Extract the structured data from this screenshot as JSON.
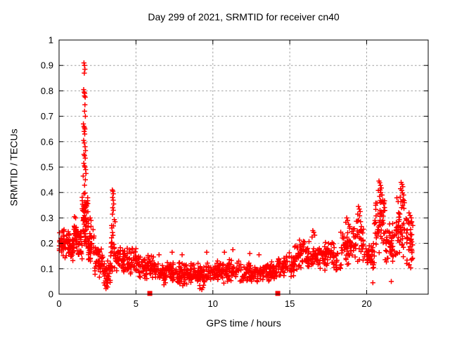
{
  "chart_data": {
    "type": "scatter",
    "title": "Day 299 of 2021, SRMTID for receiver cn40",
    "xlabel": "GPS time / hours",
    "ylabel": "SRMTID / TECUs",
    "xlim": [
      0,
      24
    ],
    "ylim": [
      0,
      1
    ],
    "xticks": [
      0,
      5,
      10,
      15,
      20
    ],
    "yticks": [
      0,
      0.1,
      0.2,
      0.3,
      0.4,
      0.5,
      0.6,
      0.7,
      0.8,
      0.9,
      1
    ],
    "grid": true,
    "legend": "none",
    "colors": {
      "points": "#ff0000",
      "axis": "#000000",
      "grid": "#a0a0a0",
      "background": "#ffffff",
      "text": "#000000"
    },
    "seed": 299,
    "series": [
      {
        "name": "SRMTID",
        "marker": "plus",
        "cluster_bins": [
          [
            0.0,
            0.35,
            0.14,
            0.27,
            32
          ],
          [
            0.35,
            0.95,
            0.13,
            0.26,
            55
          ],
          [
            0.95,
            1.25,
            0.15,
            0.3,
            34
          ],
          [
            1.25,
            1.5,
            0.13,
            0.26,
            24
          ],
          [
            1.5,
            1.9,
            0.16,
            0.46,
            60
          ],
          [
            1.9,
            2.3,
            0.1,
            0.28,
            40
          ],
          [
            2.3,
            2.85,
            0.06,
            0.2,
            42
          ],
          [
            2.85,
            3.35,
            0.025,
            0.14,
            40
          ],
          [
            3.35,
            3.65,
            0.06,
            0.3,
            30
          ],
          [
            3.65,
            4.3,
            0.08,
            0.2,
            46
          ],
          [
            4.3,
            5.2,
            0.08,
            0.185,
            58
          ],
          [
            5.2,
            6.2,
            0.05,
            0.16,
            62
          ],
          [
            6.2,
            7.5,
            0.035,
            0.135,
            85
          ],
          [
            7.5,
            9.0,
            0.03,
            0.125,
            95
          ],
          [
            9.0,
            10.2,
            0.03,
            0.125,
            78
          ],
          [
            10.2,
            11.8,
            0.04,
            0.14,
            100
          ],
          [
            11.8,
            13.2,
            0.04,
            0.125,
            88
          ],
          [
            13.2,
            14.2,
            0.045,
            0.13,
            62
          ],
          [
            14.2,
            15.3,
            0.06,
            0.165,
            68
          ],
          [
            15.3,
            16.3,
            0.08,
            0.22,
            62
          ],
          [
            16.3,
            17.3,
            0.09,
            0.2,
            58
          ],
          [
            17.3,
            18.3,
            0.08,
            0.22,
            55
          ],
          [
            18.3,
            19.1,
            0.1,
            0.27,
            50
          ],
          [
            19.1,
            19.8,
            0.12,
            0.32,
            45
          ],
          [
            19.8,
            20.5,
            0.09,
            0.22,
            40
          ],
          [
            20.5,
            21.2,
            0.14,
            0.4,
            52
          ],
          [
            21.2,
            21.9,
            0.1,
            0.3,
            44
          ],
          [
            21.9,
            22.6,
            0.12,
            0.4,
            52
          ],
          [
            22.6,
            23.0,
            0.08,
            0.32,
            38
          ]
        ],
        "points": [
          [
            1.62,
            0.91
          ],
          [
            1.65,
            0.9
          ],
          [
            1.68,
            0.885
          ],
          [
            1.64,
            0.87
          ],
          [
            1.6,
            0.805
          ],
          [
            1.63,
            0.795
          ],
          [
            1.67,
            0.79
          ],
          [
            1.65,
            0.78
          ],
          [
            1.7,
            0.775
          ],
          [
            1.68,
            0.745
          ],
          [
            1.66,
            0.72
          ],
          [
            1.71,
            0.7
          ],
          [
            1.58,
            0.67
          ],
          [
            1.62,
            0.66
          ],
          [
            1.65,
            0.655
          ],
          [
            1.68,
            0.65
          ],
          [
            1.63,
            0.64
          ],
          [
            1.67,
            0.63
          ],
          [
            1.6,
            0.605
          ],
          [
            1.64,
            0.595
          ],
          [
            1.69,
            0.58
          ],
          [
            1.72,
            0.565
          ],
          [
            1.62,
            0.55
          ],
          [
            1.66,
            0.545
          ],
          [
            1.7,
            0.535
          ],
          [
            1.61,
            0.515
          ],
          [
            1.65,
            0.505
          ],
          [
            1.68,
            0.5
          ],
          [
            1.73,
            0.49
          ],
          [
            1.75,
            0.475
          ],
          [
            1.57,
            0.465
          ],
          [
            3.46,
            0.41
          ],
          [
            3.5,
            0.405
          ],
          [
            3.53,
            0.395
          ],
          [
            3.48,
            0.38
          ],
          [
            3.52,
            0.37
          ],
          [
            3.55,
            0.355
          ],
          [
            3.49,
            0.34
          ],
          [
            3.53,
            0.33
          ],
          [
            3.47,
            0.315
          ],
          [
            2.02,
            0.3
          ],
          [
            2.08,
            0.29
          ],
          [
            1.0,
            0.305
          ],
          [
            1.08,
            0.3
          ],
          [
            3.05,
            0.022
          ],
          [
            3.15,
            0.028
          ],
          [
            9.15,
            0.022
          ],
          [
            9.28,
            0.018
          ],
          [
            9.35,
            0.026
          ],
          [
            20.4,
            0.045
          ],
          [
            21.6,
            0.05
          ],
          [
            6.5,
            0.155
          ],
          [
            7.35,
            0.165
          ],
          [
            8.0,
            0.155
          ],
          [
            9.6,
            0.165
          ],
          [
            10.75,
            0.165
          ],
          [
            11.3,
            0.175
          ],
          [
            12.4,
            0.16
          ],
          [
            13.0,
            0.155
          ],
          [
            16.5,
            0.25
          ],
          [
            16.56,
            0.243
          ],
          [
            16.62,
            0.232
          ],
          [
            16.45,
            0.225
          ],
          [
            18.7,
            0.3
          ],
          [
            18.76,
            0.29
          ],
          [
            18.64,
            0.283
          ],
          [
            18.82,
            0.275
          ],
          [
            19.46,
            0.345
          ],
          [
            19.52,
            0.335
          ],
          [
            19.58,
            0.325
          ],
          [
            19.42,
            0.315
          ],
          [
            20.8,
            0.445
          ],
          [
            20.85,
            0.438
          ],
          [
            20.9,
            0.428
          ],
          [
            20.95,
            0.418
          ],
          [
            20.76,
            0.408
          ],
          [
            20.88,
            0.41
          ],
          [
            20.92,
            0.4
          ],
          [
            21.0,
            0.39
          ],
          [
            20.84,
            0.385
          ],
          [
            21.05,
            0.37
          ],
          [
            22.24,
            0.44
          ],
          [
            22.3,
            0.432
          ],
          [
            22.35,
            0.423
          ],
          [
            22.2,
            0.415
          ],
          [
            22.28,
            0.408
          ],
          [
            22.33,
            0.398
          ],
          [
            22.4,
            0.39
          ],
          [
            22.18,
            0.382
          ],
          [
            22.37,
            0.372
          ],
          [
            22.45,
            0.36
          ],
          [
            22.75,
            0.32
          ],
          [
            22.82,
            0.31
          ],
          [
            22.9,
            0.3
          ]
        ]
      },
      {
        "name": "event markers",
        "marker": "filled-square",
        "points": [
          [
            5.9,
            0.003
          ],
          [
            14.22,
            0.003
          ]
        ]
      }
    ]
  }
}
